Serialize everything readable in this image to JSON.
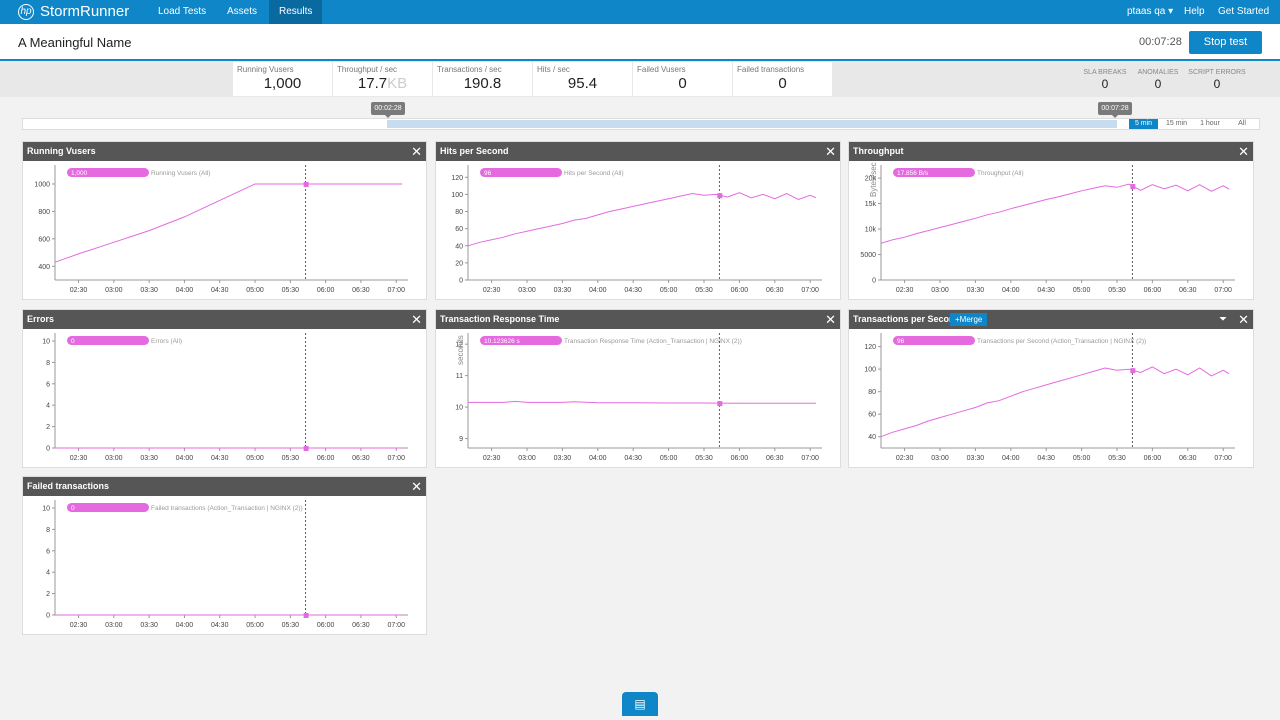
{
  "app": {
    "brand": "StormRunner",
    "logo_glyph": "hp"
  },
  "nav": [
    {
      "label": "Load Tests"
    },
    {
      "label": "Assets"
    },
    {
      "label": "Results"
    }
  ],
  "user": {
    "name": "ptaas qa ▾",
    "help": "Help",
    "get_started": "Get Started"
  },
  "test": {
    "name": "A Meaningful Name",
    "elapsed": "00:07:28",
    "stop_label": "Stop test"
  },
  "stats": [
    {
      "label": "Running Vusers",
      "value": "1,000",
      "unit": ""
    },
    {
      "label": "Throughput / sec",
      "value": "17.7",
      "unit": "KB"
    },
    {
      "label": "Transactions / sec",
      "value": "190.8",
      "unit": ""
    },
    {
      "label": "Hits / sec",
      "value": "95.4",
      "unit": ""
    },
    {
      "label": "Failed Vusers",
      "value": "0",
      "unit": ""
    },
    {
      "label": "Failed transactions",
      "value": "0",
      "unit": ""
    }
  ],
  "right_stats": [
    {
      "label": "SLA BREAKS",
      "value": "0"
    },
    {
      "label": "ANOMALIES",
      "value": "0"
    },
    {
      "label": "SCRIPT ERRORS",
      "value": "0"
    }
  ],
  "timeline": {
    "start_marker": "00:02:28",
    "end_marker": "00:07:28",
    "ranges": [
      "5 min",
      "15 min",
      "1 hour",
      "All"
    ],
    "active_range": "5 min"
  },
  "colors": {
    "accent": "#0e86c7",
    "series": "#e56ae0",
    "panel_header": "#565656"
  },
  "panels": [
    {
      "title": "Running Vusers",
      "close": "✕"
    },
    {
      "title": "Hits per Second",
      "close": "✕"
    },
    {
      "title": "Throughput",
      "close": "✕"
    },
    {
      "title": "Errors",
      "close": "✕"
    },
    {
      "title": "Transaction Response Time",
      "close": "✕"
    },
    {
      "title": "Transactions per Second",
      "close": "✕",
      "merge": "+Merge",
      "filter_icon": "filter-icon"
    },
    {
      "title": "Failed transactions",
      "close": "✕"
    }
  ],
  "chart_data": [
    {
      "type": "line",
      "title": "Running Vusers",
      "legend_value": "1,000",
      "legend_label": "Running Vusers (All)",
      "ylabel": "",
      "x_ticks": [
        "02:30",
        "03:00",
        "03:30",
        "04:00",
        "04:30",
        "05:00",
        "05:30",
        "06:00",
        "06:30",
        "07:00"
      ],
      "y_ticks": [
        "400",
        "600",
        "800",
        "1000"
      ],
      "ylim": [
        300,
        1080
      ],
      "marker": "05:43",
      "series": [
        {
          "x": [
            "02:10",
            "02:30",
            "03:00",
            "03:30",
            "04:00",
            "04:30",
            "05:00",
            "05:30",
            "06:00",
            "06:30",
            "07:05"
          ],
          "y": [
            430,
            490,
            575,
            660,
            760,
            880,
            1000,
            1000,
            1000,
            1000,
            1000
          ]
        }
      ]
    },
    {
      "type": "line",
      "title": "Hits per Second",
      "legend_value": "96",
      "legend_label": "Hits per Second (All)",
      "ylabel": "",
      "x_ticks": [
        "02:30",
        "03:00",
        "03:30",
        "04:00",
        "04:30",
        "05:00",
        "05:30",
        "06:00",
        "06:30",
        "07:00"
      ],
      "y_ticks": [
        "0",
        "20",
        "40",
        "60",
        "80",
        "100",
        "120"
      ],
      "ylim": [
        0,
        125
      ],
      "marker": "05:43",
      "series": [
        {
          "x": [
            "02:10",
            "02:20",
            "02:30",
            "02:40",
            "02:50",
            "03:00",
            "03:10",
            "03:20",
            "03:30",
            "03:40",
            "03:50",
            "04:00",
            "04:10",
            "04:20",
            "04:30",
            "04:40",
            "04:50",
            "05:00",
            "05:10",
            "05:20",
            "05:30",
            "05:40",
            "05:50",
            "06:00",
            "06:10",
            "06:20",
            "06:30",
            "06:40",
            "06:50",
            "07:00",
            "07:05"
          ],
          "y": [
            40,
            44,
            47,
            50,
            54,
            57,
            60,
            63,
            66,
            70,
            72,
            76,
            80,
            83,
            86,
            89,
            92,
            95,
            98,
            101,
            99,
            100,
            97,
            102,
            96,
            100,
            95,
            101,
            94,
            99,
            96
          ]
        }
      ]
    },
    {
      "type": "line",
      "title": "Throughput",
      "legend_value": "17.856 B/s",
      "legend_label": "Throughput (All)",
      "ylabel": "Bytes/sec",
      "x_ticks": [
        "02:30",
        "03:00",
        "03:30",
        "04:00",
        "04:30",
        "05:00",
        "05:30",
        "06:00",
        "06:30",
        "07:00"
      ],
      "y_ticks": [
        "0",
        "5000",
        "10k",
        "15k",
        "20k"
      ],
      "ylim": [
        0,
        21000
      ],
      "marker": "05:43",
      "series": [
        {
          "x": [
            "02:10",
            "02:20",
            "02:30",
            "02:40",
            "02:50",
            "03:00",
            "03:10",
            "03:20",
            "03:30",
            "03:40",
            "03:50",
            "04:00",
            "04:10",
            "04:20",
            "04:30",
            "04:40",
            "04:50",
            "05:00",
            "05:10",
            "05:20",
            "05:30",
            "05:40",
            "05:50",
            "06:00",
            "06:10",
            "06:20",
            "06:30",
            "06:40",
            "06:50",
            "07:00",
            "07:05"
          ],
          "y": [
            7200,
            7900,
            8400,
            9100,
            9700,
            10300,
            10900,
            11500,
            12100,
            12800,
            13300,
            14000,
            14600,
            15200,
            15800,
            16300,
            16900,
            17500,
            18000,
            18500,
            18200,
            18800,
            17600,
            18700,
            17900,
            18600,
            17500,
            18700,
            17400,
            18500,
            17800
          ]
        }
      ]
    },
    {
      "type": "line",
      "title": "Errors",
      "legend_value": "0",
      "legend_label": "Errors (All)",
      "ylabel": "",
      "x_ticks": [
        "02:30",
        "03:00",
        "03:30",
        "04:00",
        "04:30",
        "05:00",
        "05:30",
        "06:00",
        "06:30",
        "07:00"
      ],
      "y_ticks": [
        "0",
        "2",
        "4",
        "6",
        "8",
        "10"
      ],
      "ylim": [
        0,
        10
      ],
      "marker": "05:43",
      "series": [
        {
          "x": [
            "02:10",
            "07:05"
          ],
          "y": [
            0,
            0
          ]
        }
      ]
    },
    {
      "type": "line",
      "title": "Transaction Response Time",
      "legend_value": "10.123626 s",
      "legend_label": "Transaction Response Time (Action_Transaction | NGINX (2))",
      "ylabel": "seconds",
      "x_ticks": [
        "02:30",
        "03:00",
        "03:30",
        "04:00",
        "04:30",
        "05:00",
        "05:30",
        "06:00",
        "06:30",
        "07:00"
      ],
      "y_ticks": [
        "9",
        "10",
        "11",
        "12"
      ],
      "ylim": [
        8.7,
        12.1
      ],
      "marker": "05:43",
      "series": [
        {
          "x": [
            "02:10",
            "02:40",
            "02:50",
            "03:00",
            "03:30",
            "03:40",
            "04:00",
            "04:30",
            "05:00",
            "05:30",
            "06:00",
            "06:30",
            "07:05"
          ],
          "y": [
            10.15,
            10.15,
            10.18,
            10.15,
            10.15,
            10.17,
            10.14,
            10.14,
            10.13,
            10.13,
            10.12,
            10.12,
            10.12
          ]
        }
      ]
    },
    {
      "type": "line",
      "title": "Transactions per Second",
      "legend_value": "96",
      "legend_label": "Transactions per Second (Action_Transaction | NGINX (2))",
      "ylabel": "",
      "x_ticks": [
        "02:30",
        "03:00",
        "03:30",
        "04:00",
        "04:30",
        "05:00",
        "05:30",
        "06:00",
        "06:30",
        "07:00"
      ],
      "y_ticks": [
        "40",
        "60",
        "80",
        "100",
        "120"
      ],
      "ylim": [
        30,
        125
      ],
      "marker": "05:43",
      "series": [
        {
          "x": [
            "02:10",
            "02:20",
            "02:30",
            "02:40",
            "02:50",
            "03:00",
            "03:10",
            "03:20",
            "03:30",
            "03:40",
            "03:50",
            "04:00",
            "04:10",
            "04:20",
            "04:30",
            "04:40",
            "04:50",
            "05:00",
            "05:10",
            "05:20",
            "05:30",
            "05:40",
            "05:50",
            "06:00",
            "06:10",
            "06:20",
            "06:30",
            "06:40",
            "06:50",
            "07:00",
            "07:05"
          ],
          "y": [
            40,
            44,
            47,
            50,
            54,
            57,
            60,
            63,
            66,
            70,
            72,
            76,
            80,
            83,
            86,
            89,
            92,
            95,
            98,
            101,
            99,
            100,
            97,
            102,
            96,
            100,
            95,
            101,
            94,
            99,
            96
          ]
        }
      ]
    },
    {
      "type": "line",
      "title": "Failed transactions",
      "legend_value": "0",
      "legend_label": "Failed transactions (Action_Transaction | NGINX (2))",
      "ylabel": "",
      "x_ticks": [
        "02:30",
        "03:00",
        "03:30",
        "04:00",
        "04:30",
        "05:00",
        "05:30",
        "06:00",
        "06:30",
        "07:00"
      ],
      "y_ticks": [
        "0",
        "2",
        "4",
        "6",
        "8",
        "10"
      ],
      "ylim": [
        0,
        10
      ],
      "marker": "05:43",
      "series": [
        {
          "x": [
            "02:10",
            "07:05"
          ],
          "y": [
            0,
            0
          ]
        }
      ]
    }
  ]
}
